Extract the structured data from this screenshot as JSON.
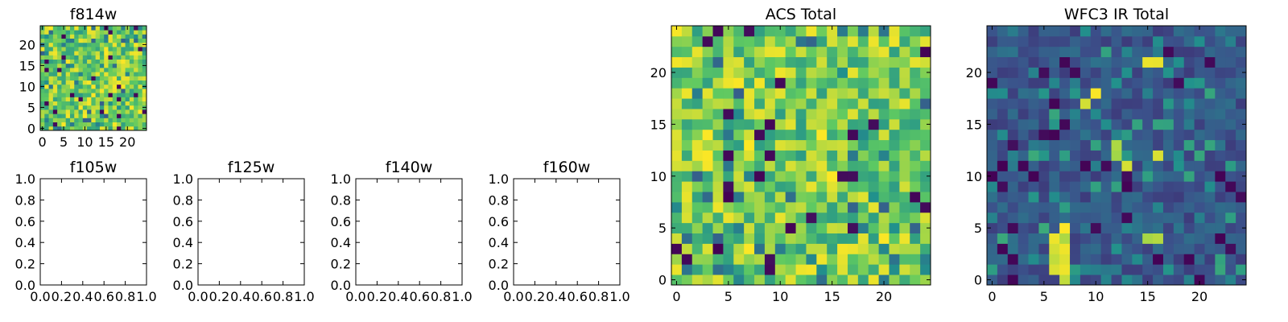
{
  "figure": {
    "background": "#ffffff",
    "colormap": [
      "#440154",
      "#3b528b",
      "#21918c",
      "#5ec962",
      "#fde725"
    ]
  },
  "chart_data": [
    {
      "id": "f814w",
      "type": "heatmap",
      "title": "f814w",
      "xlim": [
        -0.5,
        24.5
      ],
      "ylim": [
        -0.5,
        24.5
      ],
      "xticks": [
        0,
        5,
        10,
        15,
        20
      ],
      "yticks": [
        0,
        5,
        10,
        15,
        20
      ],
      "grid_size": [
        25,
        25
      ],
      "seed": 11,
      "value_profile": "high"
    },
    {
      "id": "f105w",
      "type": "heatmap",
      "title": "f105w",
      "xlim": [
        0,
        1
      ],
      "ylim": [
        0,
        1
      ],
      "xticks": [
        "0.0",
        "0.2",
        "0.4",
        "0.6",
        "0.8",
        "1.0"
      ],
      "yticks": [
        "0.0",
        "0.2",
        "0.4",
        "0.6",
        "0.8",
        "1.0"
      ],
      "empty": true
    },
    {
      "id": "f125w",
      "type": "heatmap",
      "title": "f125w",
      "xlim": [
        0,
        1
      ],
      "ylim": [
        0,
        1
      ],
      "xticks": [
        "0.0",
        "0.2",
        "0.4",
        "0.6",
        "0.8",
        "1.0"
      ],
      "yticks": [
        "0.0",
        "0.2",
        "0.4",
        "0.6",
        "0.8",
        "1.0"
      ],
      "empty": true
    },
    {
      "id": "f140w",
      "type": "heatmap",
      "title": "f140w",
      "xlim": [
        0,
        1
      ],
      "ylim": [
        0,
        1
      ],
      "xticks": [
        "0.0",
        "0.2",
        "0.4",
        "0.6",
        "0.8",
        "1.0"
      ],
      "yticks": [
        "0.0",
        "0.2",
        "0.4",
        "0.6",
        "0.8",
        "1.0"
      ],
      "empty": true
    },
    {
      "id": "f160w",
      "type": "heatmap",
      "title": "f160w",
      "xlim": [
        0,
        1
      ],
      "ylim": [
        0,
        1
      ],
      "xticks": [
        "0.0",
        "0.2",
        "0.4",
        "0.6",
        "0.8",
        "1.0"
      ],
      "yticks": [
        "0.0",
        "0.2",
        "0.4",
        "0.6",
        "0.8",
        "1.0"
      ],
      "empty": true
    },
    {
      "id": "acs_total",
      "type": "heatmap",
      "title": "ACS Total",
      "xlim": [
        -0.5,
        24.5
      ],
      "ylim": [
        -0.5,
        24.5
      ],
      "xticks": [
        0,
        5,
        10,
        15,
        20
      ],
      "yticks": [
        0,
        5,
        10,
        15,
        20
      ],
      "grid_size": [
        25,
        25
      ],
      "seed": 23,
      "value_profile": "high"
    },
    {
      "id": "wfc3_ir_total",
      "type": "heatmap",
      "title": "WFC3 IR Total",
      "xlim": [
        -0.5,
        24.5
      ],
      "ylim": [
        -0.5,
        24.5
      ],
      "xticks": [
        0,
        5,
        10,
        15,
        20
      ],
      "yticks": [
        0,
        5,
        10,
        15,
        20
      ],
      "grid_size": [
        25,
        25
      ],
      "seed": 37,
      "value_profile": "low",
      "bright_cells": [
        [
          6,
          1
        ],
        [
          6,
          2
        ],
        [
          6,
          3
        ],
        [
          6,
          4
        ],
        [
          7,
          0
        ],
        [
          7,
          1
        ],
        [
          7,
          2
        ],
        [
          7,
          3
        ],
        [
          7,
          4
        ],
        [
          7,
          5
        ],
        [
          15,
          4
        ],
        [
          16,
          4
        ],
        [
          15,
          21
        ],
        [
          16,
          21
        ],
        [
          10,
          18
        ],
        [
          9,
          17
        ],
        [
          12,
          12
        ],
        [
          12,
          13
        ],
        [
          13,
          11
        ],
        [
          16,
          12
        ]
      ]
    }
  ]
}
